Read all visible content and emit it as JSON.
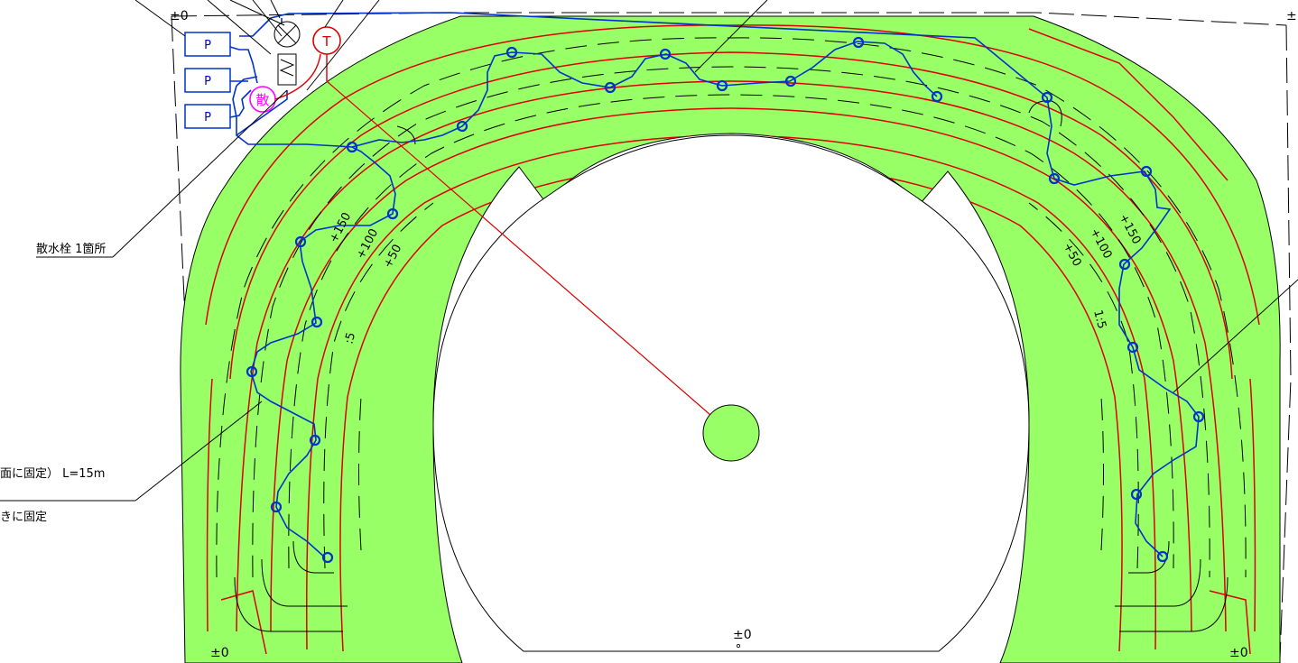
{
  "colors": {
    "turf": "#99ff66",
    "contour": "#dd0000",
    "pipe": "#0033cc",
    "sprinkler_callout": "#ff00ff",
    "tank": "#dd0000",
    "line": "#000000"
  },
  "equipment": {
    "pump_labels": [
      "P",
      "P",
      "P"
    ],
    "sprinkler_hydrant": "散",
    "tank": "T"
  },
  "annotations": {
    "hydrant_note": "散水栓 1箇所",
    "hose_note": "面に固定） L=15m",
    "fixing_note": "きに固定"
  },
  "elevations": {
    "top_left": "±0",
    "top_right": "±",
    "center_bottom": "±0",
    "bottom_left": "±0",
    "bottom_right": "±0"
  },
  "contours": {
    "left": [
      "+150",
      "+100",
      "+50"
    ],
    "right": [
      "+150",
      "+100",
      "+50"
    ],
    "slope_left": ":5",
    "slope_right": "1:5"
  },
  "icons": [
    "valve-icon",
    "filter-icon"
  ]
}
